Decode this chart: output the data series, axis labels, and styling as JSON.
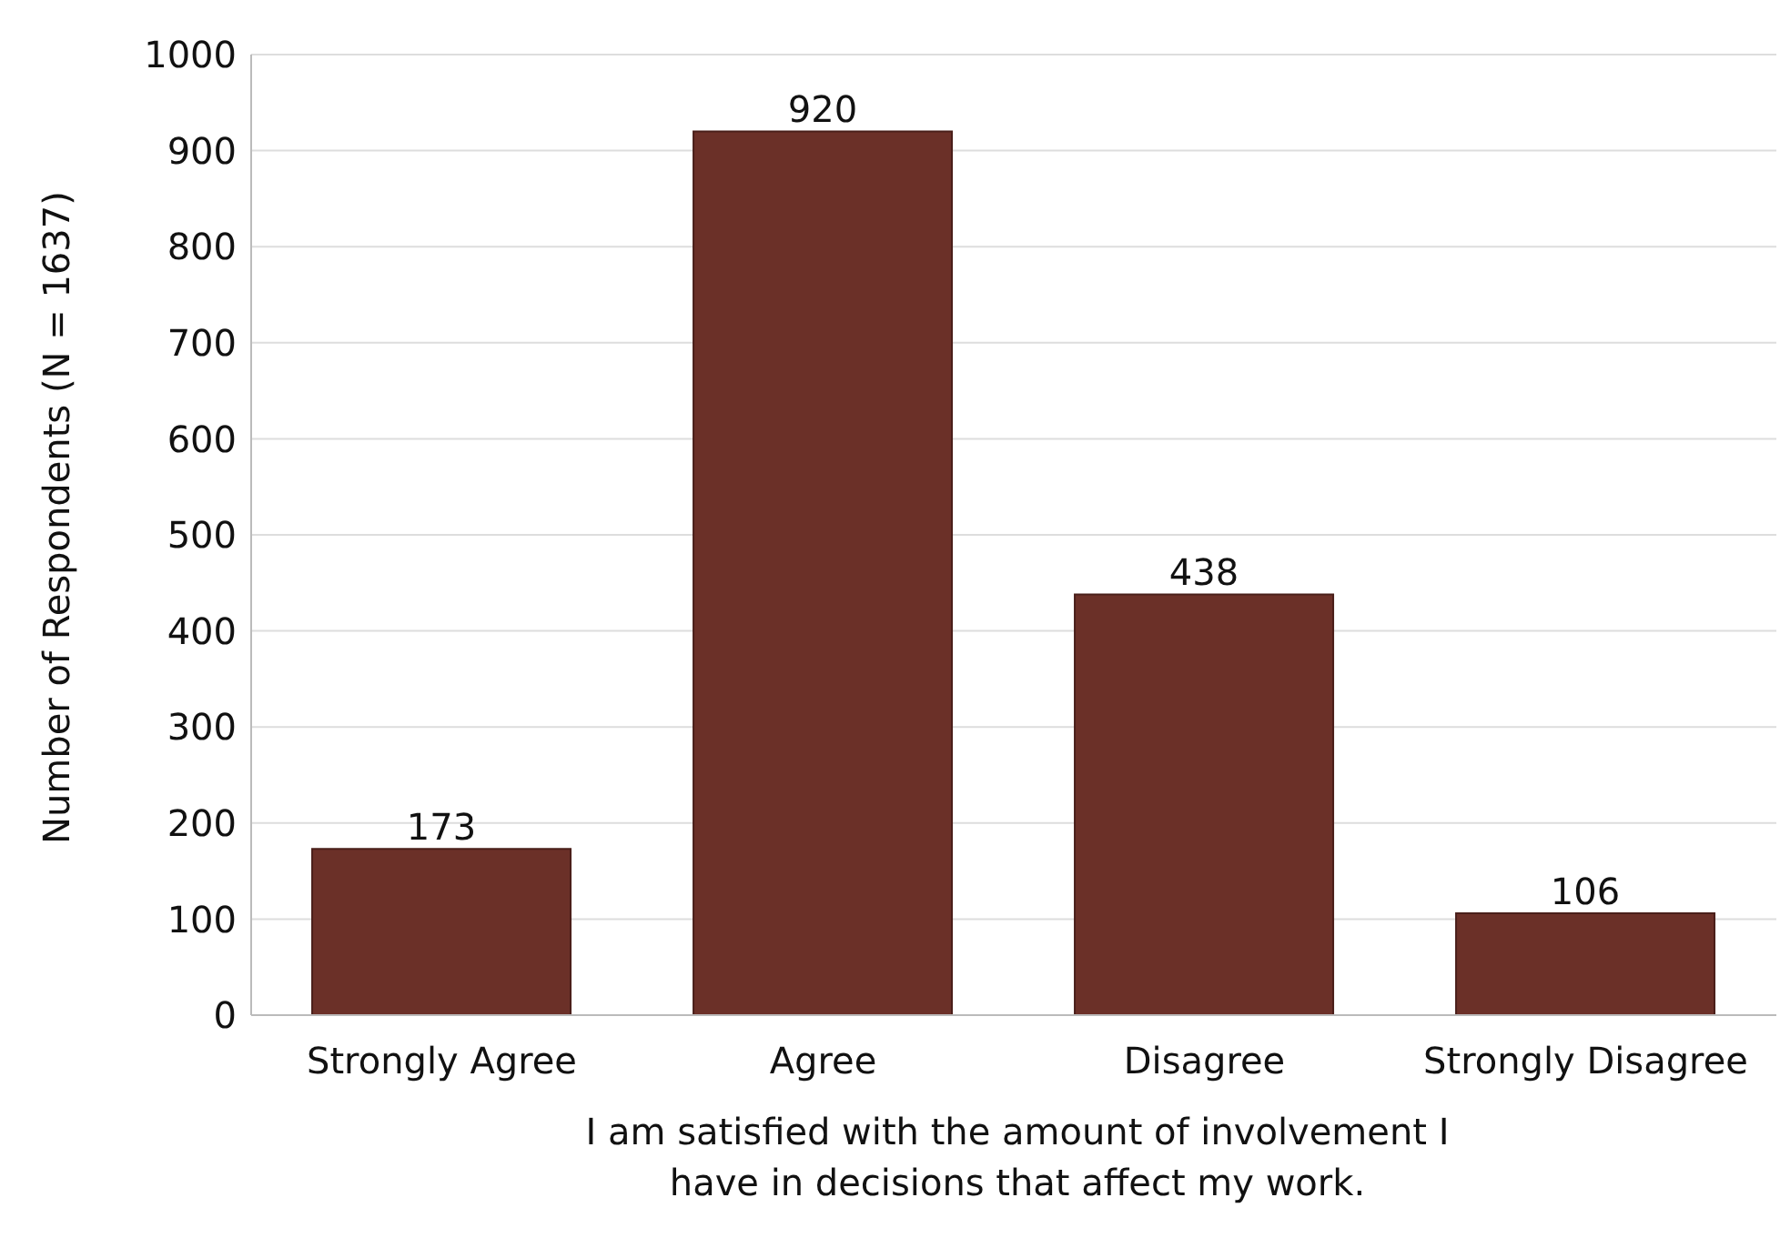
{
  "chart_data": {
    "type": "bar",
    "xlabel": "I am satisfied with the amount of involvement I have in decisions that affect my work.",
    "ylabel": "Number of Respondents (N = 1637)",
    "categories": [
      "Strongly Agree",
      "Agree",
      "Disagree",
      "Strongly Disagree"
    ],
    "values": [
      173,
      920,
      438,
      106
    ],
    "color": "#6b3028",
    "ylim": [
      0,
      1000
    ],
    "yticks": [
      0,
      100,
      200,
      300,
      400,
      500,
      600,
      700,
      800,
      900,
      1000
    ],
    "grid": "y",
    "data_labels": true,
    "legend": false
  }
}
